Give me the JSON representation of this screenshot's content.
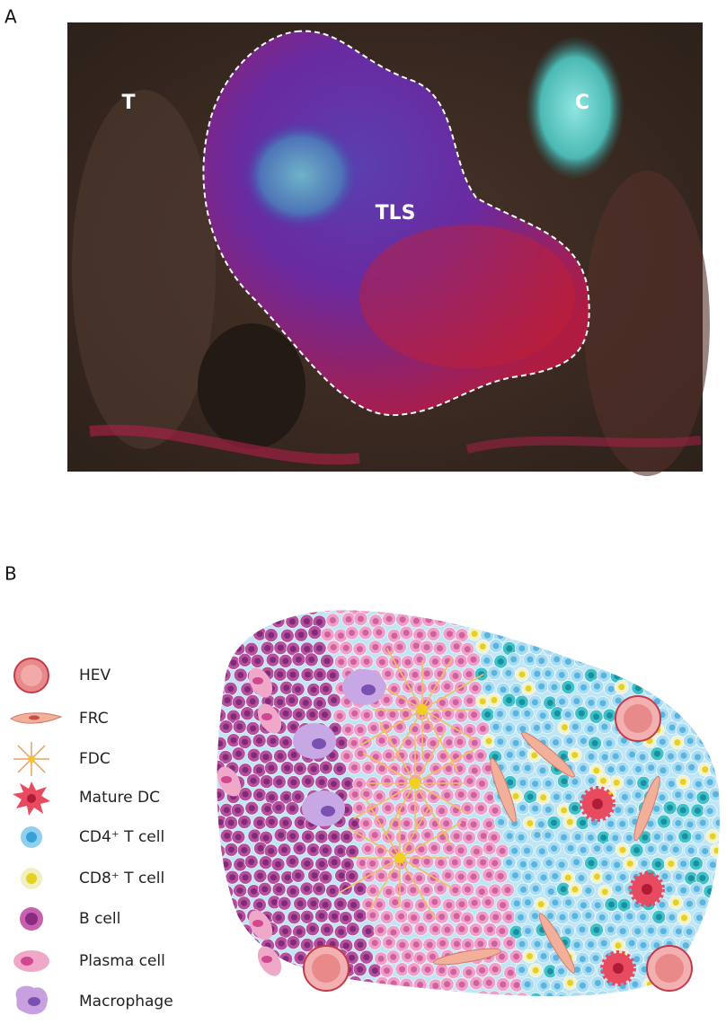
{
  "panels": [
    {
      "label": "A",
      "annotations": [
        "T",
        "C",
        "TLS"
      ]
    },
    {
      "label": "B",
      "legend": [
        "HEV",
        "FRC",
        "FDC",
        "Mature DC",
        "CD4⁺ T cell",
        "CD8⁺ T cell",
        "B cell",
        "Plasma cell",
        "Macrophage"
      ]
    }
  ]
}
